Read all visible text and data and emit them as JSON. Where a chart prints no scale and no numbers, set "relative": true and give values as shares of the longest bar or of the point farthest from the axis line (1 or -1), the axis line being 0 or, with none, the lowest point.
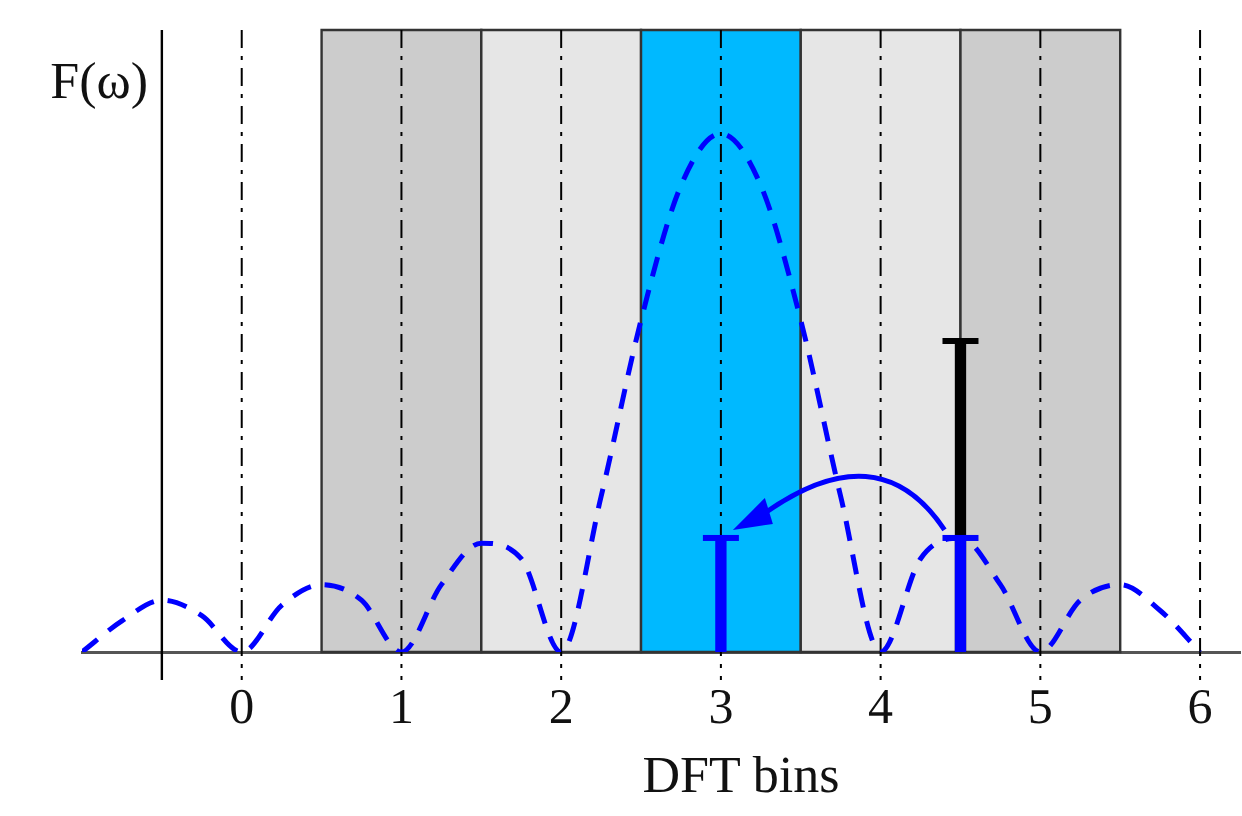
{
  "chart_data": {
    "type": "line",
    "xlabel": "DFT bins",
    "ylabel": "F(ω)",
    "relative": true,
    "xlim": [
      -1,
      6.25
    ],
    "xticks": [
      0,
      1,
      2,
      3,
      4,
      5,
      6
    ],
    "grid": "x",
    "legend": false,
    "marker": "none",
    "bands": [
      {
        "axis": "x",
        "from": 0.5,
        "to": 1.5,
        "color": "#cccccc"
      },
      {
        "axis": "x",
        "from": 1.5,
        "to": 2.5,
        "color": "#e6e6e6"
      },
      {
        "axis": "x",
        "from": 2.5,
        "to": 3.5,
        "color": "#00b9ff"
      },
      {
        "axis": "x",
        "from": 3.5,
        "to": 4.5,
        "color": "#e6e6e6"
      },
      {
        "axis": "x",
        "from": 4.5,
        "to": 5.5,
        "color": "#cccccc"
      }
    ],
    "ref_lines": [
      {
        "axis": "x",
        "value": -0.5,
        "color": "#000000",
        "line_style": "solid"
      }
    ],
    "series": [
      {
        "line_style": "dashed",
        "color": "#0000ff",
        "x": [
          -1,
          -0.75,
          -0.5,
          -0.25,
          0,
          0.25,
          0.5,
          0.75,
          1,
          1.25,
          1.5,
          1.75,
          2,
          2.25,
          2.5,
          2.75,
          3,
          3.25,
          3.5,
          3.75,
          4,
          4.25,
          4.5,
          4.75,
          5,
          5.25,
          5.5,
          5.75,
          6
        ],
        "values": [
          0,
          0.06,
          0.1,
          0.07,
          0,
          0.09,
          0.13,
          0.1,
          0,
          0.13,
          0.21,
          0.18,
          0,
          0.3,
          0.64,
          0.9,
          1,
          0.9,
          0.64,
          0.3,
          0,
          0.18,
          0.22,
          0.13,
          0,
          0.1,
          0.13,
          0.08,
          0
        ]
      },
      {
        "type": "bar",
        "color": "#0000ff",
        "x": [
          3,
          4.5
        ],
        "values": [
          0.22,
          0.22
        ]
      },
      {
        "type": "bar",
        "color": "#000000",
        "x": [
          4.5
        ],
        "values": [
          0.6
        ]
      }
    ]
  }
}
